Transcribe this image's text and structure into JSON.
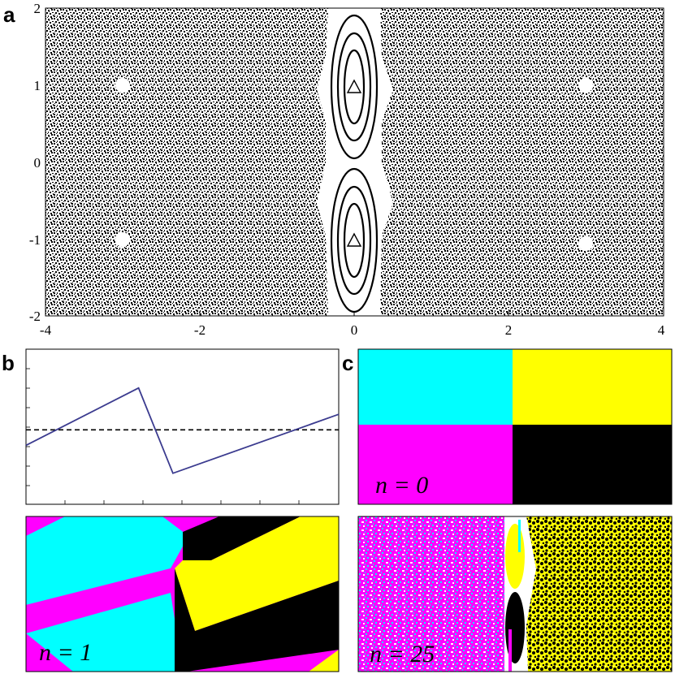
{
  "figure": {
    "panels": {
      "a": {
        "letter": "a",
        "x_ticks": [
          "-4",
          "-2",
          "0",
          "2",
          "4"
        ],
        "y_ticks": [
          "2",
          "1",
          "0",
          "-1",
          "-2"
        ],
        "xlim": [
          -4,
          4
        ],
        "ylim": [
          -2,
          2
        ]
      },
      "b": {
        "letter": "b"
      },
      "c": {
        "letter": "c"
      },
      "b_lower": {
        "label": "n = 1"
      },
      "c_upper": {
        "label": "n = 0"
      },
      "c_lower": {
        "label": "n = 25"
      }
    },
    "colors": {
      "cyan": "#00ffff",
      "yellow": "#ffff00",
      "magenta": "#ff00ff",
      "black": "#000000",
      "line": "#3b3b8f"
    }
  },
  "chart_data": [
    {
      "type": "scatter",
      "panel": "a",
      "xlim": [
        -4,
        4
      ],
      "ylim": [
        -2,
        2
      ],
      "grid": false,
      "fixed_points_circles": [
        {
          "x": -3,
          "y": 1
        },
        {
          "x": -3,
          "y": -1
        },
        {
          "x": 3,
          "y": 1
        },
        {
          "x": 3,
          "y": -1
        }
      ],
      "fixed_points_triangles": [
        {
          "x": 0,
          "y": 1
        },
        {
          "x": 0,
          "y": -1
        }
      ]
    },
    {
      "type": "line",
      "panel": "b",
      "series": [
        {
          "x": [
            0,
            0.36,
            0.47,
            1.0
          ],
          "y": [
            0.38,
            0.75,
            0.2,
            0.58
          ]
        }
      ],
      "reference_line_y": 0.48,
      "xlim": [
        0,
        1
      ],
      "ylim": [
        0,
        1
      ]
    }
  ]
}
